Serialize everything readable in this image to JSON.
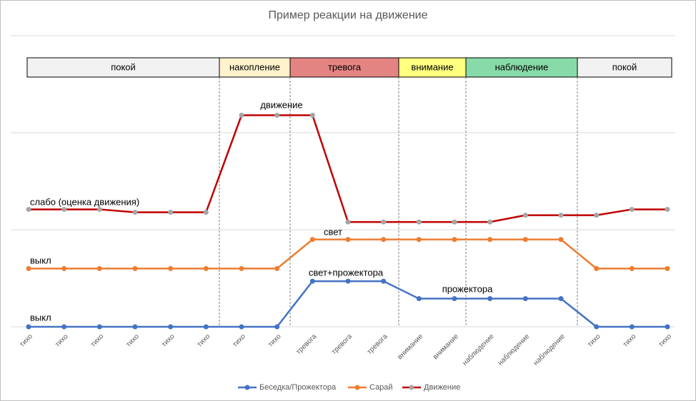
{
  "chart_data": {
    "type": "line",
    "title": "Пример реакции на движение",
    "categories": [
      "тихо",
      "тихо",
      "тихо",
      "тихо",
      "тихо",
      "тихо",
      "тихо",
      "тихо",
      "тревога",
      "тревога",
      "тревога",
      "внимание",
      "внимание",
      "наблюдение",
      "наблюдение",
      "наблюдение",
      "тихо",
      "тихо",
      "тихо"
    ],
    "series": [
      {
        "name": "Беседка/Прожектора",
        "color": "#4472c4",
        "marker_color": "#4472c4",
        "values": [
          0,
          0,
          0,
          0,
          0,
          0,
          0,
          0,
          0.47,
          0.47,
          0.47,
          0.29,
          0.29,
          0.29,
          0.29,
          0.29,
          0,
          0,
          0
        ]
      },
      {
        "name": "Сарай",
        "color": "#ed7d31",
        "marker_color": "#ed7d31",
        "values": [
          0.6,
          0.6,
          0.6,
          0.6,
          0.6,
          0.6,
          0.6,
          0.6,
          0.9,
          0.9,
          0.9,
          0.9,
          0.9,
          0.9,
          0.9,
          0.9,
          0.6,
          0.6,
          0.6
        ]
      },
      {
        "name": "Движение",
        "color": "#c00000",
        "marker_color": "#a5a5a5",
        "values": [
          1.21,
          1.21,
          1.21,
          1.18,
          1.18,
          1.18,
          2.18,
          2.18,
          2.18,
          1.08,
          1.08,
          1.08,
          1.08,
          1.08,
          1.15,
          1.15,
          1.15,
          1.21,
          1.21
        ]
      }
    ],
    "ylim": [
      0,
      3
    ],
    "gridlines": [
      0,
      1,
      2,
      3
    ],
    "phases": [
      {
        "label": "покой",
        "color": "#f2f2f2"
      },
      {
        "label": "накопление",
        "color": "#fff2cc"
      },
      {
        "label": "тревога",
        "color": "#e48482"
      },
      {
        "label": "внимание",
        "color": "#ffff80"
      },
      {
        "label": "наблюдение",
        "color": "#88dba9"
      },
      {
        "label": "покой",
        "color": "#f2f2f2"
      }
    ],
    "annotations": [
      "движение",
      "слабо (оценка движения)",
      "свет",
      "выкл",
      "свет+прожектора",
      "прожектора",
      "выкл"
    ]
  }
}
